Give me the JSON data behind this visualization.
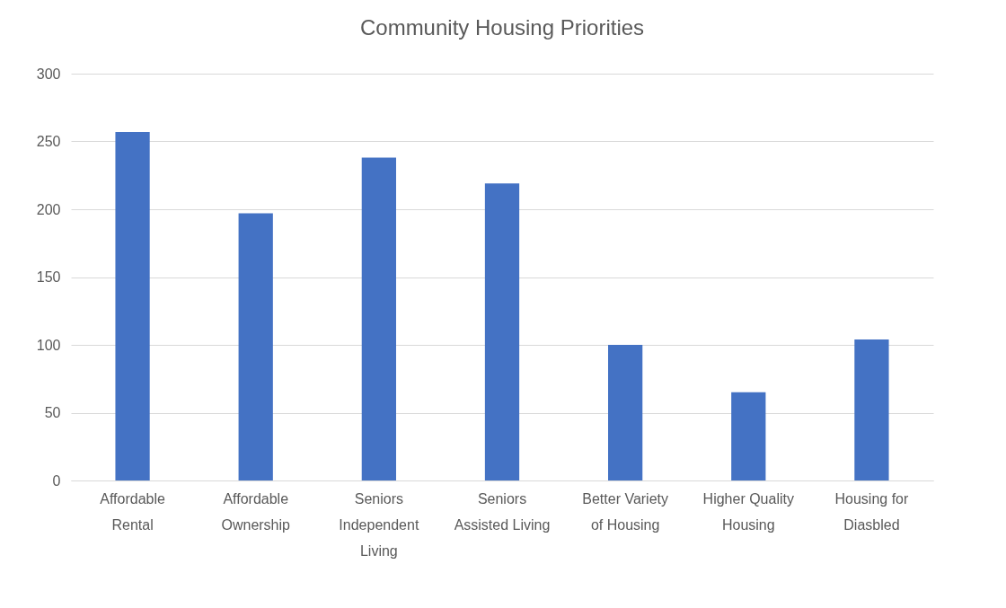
{
  "chart_data": {
    "type": "bar",
    "title": "Community Housing Priorities",
    "categories": [
      "Affordable Rental",
      "Affordable Ownership",
      "Seniors Independent Living",
      "Seniors Assisted Living",
      "Better Variety of Housing",
      "Higher Quality Housing",
      "Housing for Diasbled"
    ],
    "values": [
      257,
      197,
      238,
      219,
      100,
      65,
      104
    ],
    "color": "#4472c4",
    "ylim": [
      0,
      300
    ],
    "yticks": [
      0,
      50,
      100,
      150,
      200,
      250,
      300
    ],
    "grid": "y"
  }
}
